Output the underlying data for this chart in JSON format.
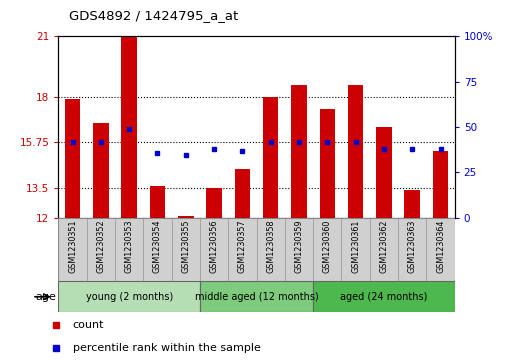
{
  "title": "GDS4892 / 1424795_a_at",
  "samples": [
    "GSM1230351",
    "GSM1230352",
    "GSM1230353",
    "GSM1230354",
    "GSM1230355",
    "GSM1230356",
    "GSM1230357",
    "GSM1230358",
    "GSM1230359",
    "GSM1230360",
    "GSM1230361",
    "GSM1230362",
    "GSM1230363",
    "GSM1230364"
  ],
  "bar_heights": [
    17.9,
    16.7,
    21.1,
    13.6,
    12.1,
    13.5,
    14.4,
    18.0,
    18.6,
    17.4,
    18.6,
    16.5,
    13.4,
    15.3
  ],
  "blue_y": [
    15.75,
    15.75,
    16.4,
    15.2,
    15.1,
    15.4,
    15.3,
    15.75,
    15.75,
    15.75,
    15.75,
    15.4,
    15.4,
    15.4
  ],
  "ylim_left": [
    12,
    21
  ],
  "ylim_right": [
    0,
    100
  ],
  "yticks_left": [
    12,
    13.5,
    15.75,
    18,
    21
  ],
  "ytick_labels_left": [
    "12",
    "13.5",
    "15.75",
    "18",
    "21"
  ],
  "yticks_right": [
    0,
    25,
    50,
    75,
    100
  ],
  "ytick_labels_right": [
    "0",
    "25",
    "50",
    "75",
    "100%"
  ],
  "hlines": [
    13.5,
    15.75,
    18
  ],
  "bar_color": "#cc0000",
  "blue_color": "#0000cc",
  "groups": [
    {
      "label": "young (2 months)",
      "start": 0,
      "end": 5,
      "color": "#b5deb5"
    },
    {
      "label": "middle aged (12 months)",
      "start": 5,
      "end": 9,
      "color": "#7ecb7e"
    },
    {
      "label": "aged (24 months)",
      "start": 9,
      "end": 14,
      "color": "#4db84d"
    }
  ],
  "age_label": "age",
  "legend_count_label": "count",
  "legend_percentile_label": "percentile rank within the sample",
  "bar_width": 0.55,
  "background_color": "#ffffff",
  "plot_bg": "#ffffff",
  "tick_label_color_left": "#cc0000",
  "tick_label_color_right": "#0000cc",
  "sample_box_color": "#d0d0d0",
  "sample_box_edge": "#999999"
}
